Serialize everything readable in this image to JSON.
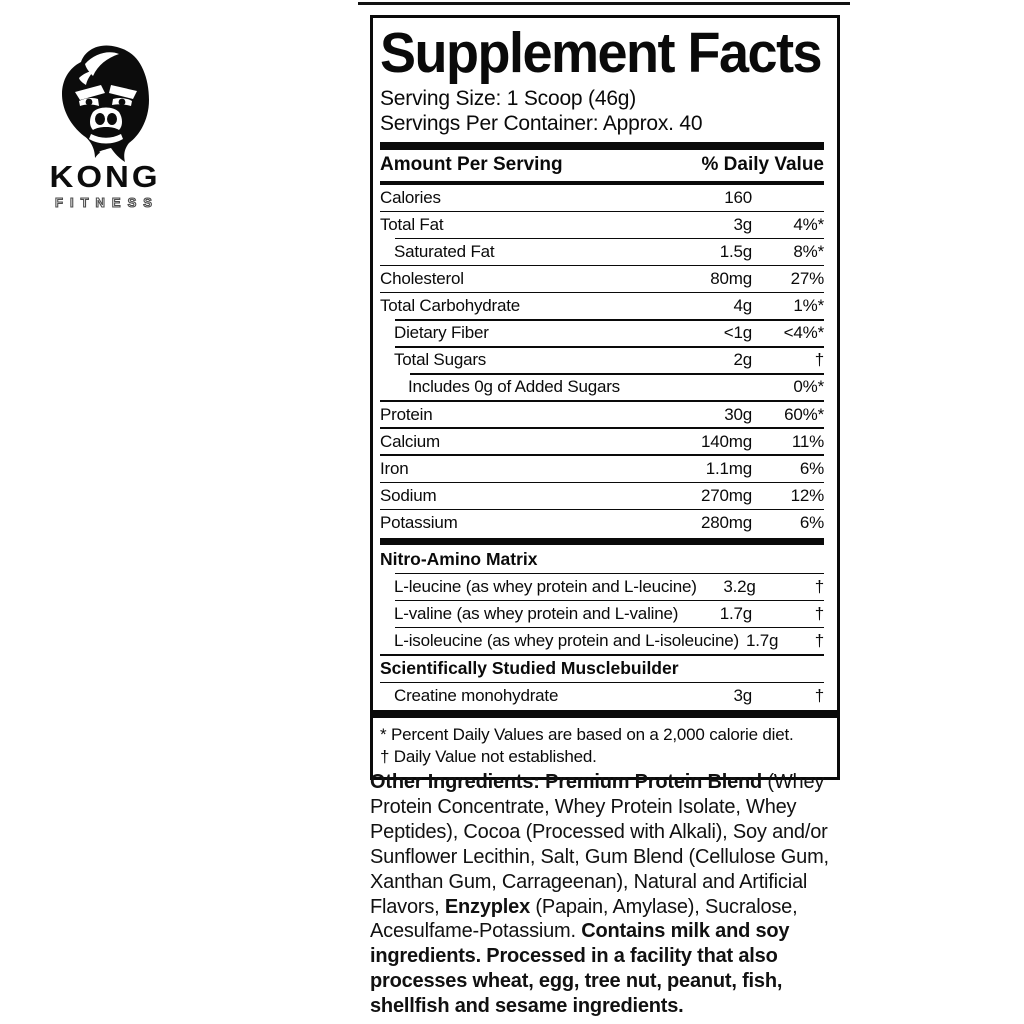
{
  "brand": {
    "name": "KONG",
    "subtitle": "FITNESS"
  },
  "supplement_facts": {
    "title": "Supplement Facts",
    "serving_size": "Serving Size: 1 Scoop (46g)",
    "servings_per_container": "Servings Per Container: Approx. 40",
    "amount_header": "Amount Per Serving",
    "dv_header": "% Daily Value",
    "rows": [
      {
        "label": "Calories",
        "amount": "160",
        "dv": "",
        "indent": 0,
        "sep": "none",
        "section": false
      },
      {
        "label": "Total Fat",
        "amount": "3g",
        "dv": "4%*",
        "indent": 0,
        "sep": "thin",
        "sep_indent": 0,
        "section": false
      },
      {
        "label": "Saturated Fat",
        "amount": "1.5g",
        "dv": "8%*",
        "indent": 1,
        "sep": "thin",
        "sep_indent": 1,
        "section": false
      },
      {
        "label": "Cholesterol",
        "amount": "80mg",
        "dv": "27%",
        "indent": 0,
        "sep": "thin",
        "sep_indent": 0,
        "section": false
      },
      {
        "label": "Total Carbohydrate",
        "amount": "4g",
        "dv": "1%*",
        "indent": 0,
        "sep": "thin",
        "sep_indent": 0,
        "section": false
      },
      {
        "label": "Dietary Fiber",
        "amount": "<1g",
        "dv": "<4%*",
        "indent": 1,
        "sep": "thin",
        "sep_indent": 1,
        "section": false
      },
      {
        "label": "Total Sugars",
        "amount": "2g",
        "dv": "†",
        "indent": 1,
        "sep": "thin",
        "sep_indent": 1,
        "section": false
      },
      {
        "label": "Includes 0g of Added Sugars",
        "amount": "",
        "dv": "0%*",
        "indent": 2,
        "sep": "thin",
        "sep_indent": 2,
        "section": false
      },
      {
        "label": "Protein",
        "amount": "30g",
        "dv": "60%*",
        "indent": 0,
        "sep": "thin",
        "sep_indent": 0,
        "section": false
      },
      {
        "label": "Calcium",
        "amount": "140mg",
        "dv": "11%",
        "indent": 0,
        "sep": "thin",
        "sep_indent": 0,
        "section": false
      },
      {
        "label": "Iron",
        "amount": "1.1mg",
        "dv": "6%",
        "indent": 0,
        "sep": "thin",
        "sep_indent": 0,
        "section": false
      },
      {
        "label": "Sodium",
        "amount": "270mg",
        "dv": "12%",
        "indent": 0,
        "sep": "thin",
        "sep_indent": 0,
        "section": false
      },
      {
        "label": "Potassium",
        "amount": "280mg",
        "dv": "6%",
        "indent": 0,
        "sep": "thin",
        "sep_indent": 0,
        "section": false
      },
      {
        "label": "Nitro-Amino Matrix",
        "amount": "",
        "dv": "",
        "indent": 0,
        "sep": "thick",
        "sep_indent": 0,
        "section": true
      },
      {
        "label": "L-leucine (as whey protein and L-leucine)",
        "amount": "3.2g",
        "dv": "†",
        "indent": 1,
        "sep": "thin",
        "sep_indent": 1,
        "section": false
      },
      {
        "label": "L-valine (as whey protein and L-valine)",
        "amount": "1.7g",
        "dv": "†",
        "indent": 1,
        "sep": "thin",
        "sep_indent": 1,
        "section": false
      },
      {
        "label": "L-isoleucine (as whey protein and L-isoleucine)",
        "amount": "1.7g",
        "dv": "†",
        "indent": 1,
        "sep": "thin",
        "sep_indent": 1,
        "section": false
      },
      {
        "label": "Scientifically Studied Musclebuilder",
        "amount": "",
        "dv": "",
        "indent": 0,
        "sep": "thin",
        "sep_indent": 0,
        "section": true
      },
      {
        "label": "Creatine monohydrate",
        "amount": "3g",
        "dv": "†",
        "indent": 1,
        "sep": "thin",
        "sep_indent": 0,
        "section": false
      }
    ],
    "footnotes": [
      "* Percent Daily Values are based on a 2,000 calorie diet.",
      "† Daily Value not established."
    ]
  },
  "other_ingredients": {
    "lines": [
      [
        {
          "t": "Other Ingredients: Premium Protein Blend",
          "b": true
        },
        {
          "t": " (Whey",
          "b": false
        }
      ],
      [
        {
          "t": "Protein Concentrate, Whey Protein Isolate, Whey",
          "b": false
        }
      ],
      [
        {
          "t": "Peptides), Cocoa (Processed with Alkali), Soy and/or",
          "b": false
        }
      ],
      [
        {
          "t": "Sunflower Lecithin, Salt, Gum Blend (Cellulose Gum,",
          "b": false
        }
      ],
      [
        {
          "t": "Xanthan Gum, Carrageenan), Natural and Artificial",
          "b": false
        }
      ],
      [
        {
          "t": "Flavors, ",
          "b": false
        },
        {
          "t": "Enzyplex",
          "b": true
        },
        {
          "t": " (Papain, Amylase), Sucralose,",
          "b": false
        }
      ],
      [
        {
          "t": "Acesulfame-Potassium. ",
          "b": false
        },
        {
          "t": "Contains milk and soy",
          "b": true
        }
      ],
      [
        {
          "t": "ingredients. Processed in a facility that also",
          "b": true
        }
      ],
      [
        {
          "t": "processes wheat, egg, tree nut, peanut, fish,",
          "b": true
        }
      ],
      [
        {
          "t": "shellfish and sesame ingredients.",
          "b": true
        }
      ]
    ]
  }
}
